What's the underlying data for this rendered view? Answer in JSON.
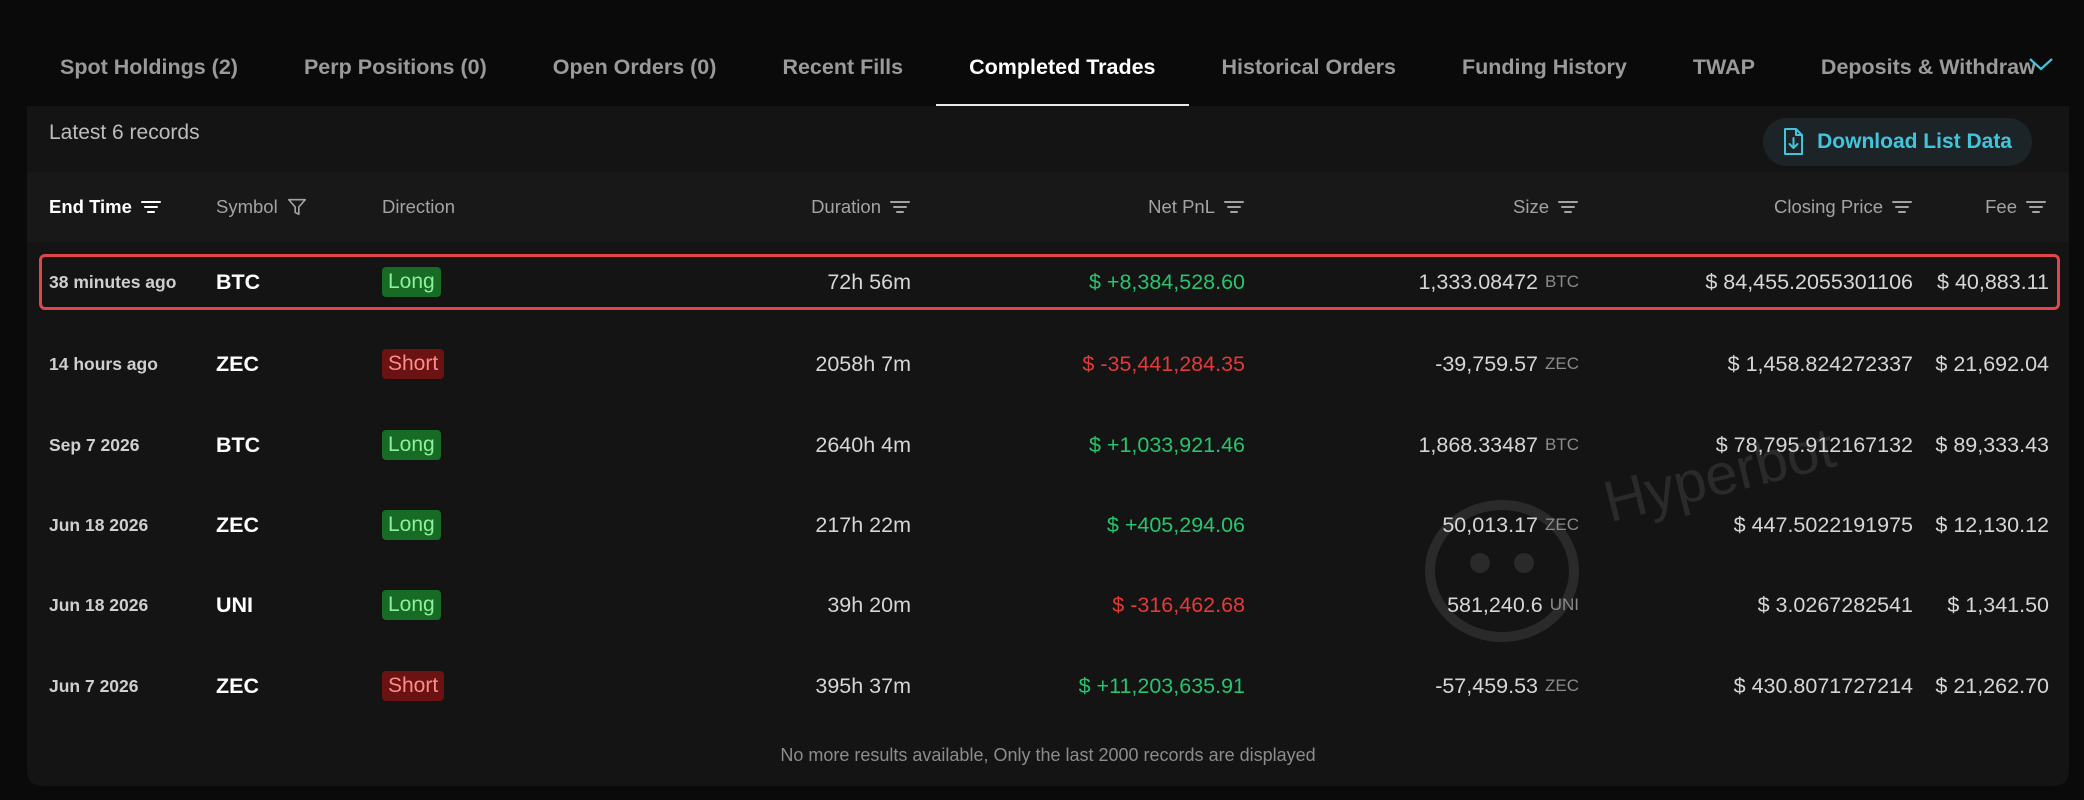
{
  "tabs": [
    {
      "label": "Spot Holdings (2)"
    },
    {
      "label": "Perp Positions (0)"
    },
    {
      "label": "Open Orders (0)"
    },
    {
      "label": "Recent Fills"
    },
    {
      "label": "Completed Trades",
      "active": true
    },
    {
      "label": "Historical Orders"
    },
    {
      "label": "Funding History"
    },
    {
      "label": "TWAP"
    },
    {
      "label": "Deposits & Withdraw"
    }
  ],
  "records_label": "Latest 6 records",
  "download_label": "Download List Data",
  "columns": {
    "end_time": "End Time",
    "symbol": "Symbol",
    "direction": "Direction",
    "duration": "Duration",
    "net_pnl": "Net PnL",
    "size": "Size",
    "closing_price": "Closing Price",
    "fee": "Fee"
  },
  "rows": [
    {
      "time": "38 minutes ago",
      "symbol": "BTC",
      "direction": "Long",
      "duration": "72h 56m",
      "pnl": "$ +8,384,528.60",
      "size": "1,333.08472",
      "size_unit": "BTC",
      "price": "$ 84,455.2055301106",
      "fee": "$ 40,883.11",
      "highlighted": true
    },
    {
      "time": "14 hours ago",
      "symbol": "ZEC",
      "direction": "Short",
      "duration": "2058h 7m",
      "pnl": "$ -35,441,284.35",
      "size": "-39,759.57",
      "size_unit": "ZEC",
      "price": "$ 1,458.824272337",
      "fee": "$ 21,692.04"
    },
    {
      "time": "Sep 7 2026",
      "symbol": "BTC",
      "direction": "Long",
      "duration": "2640h 4m",
      "pnl": "$ +1,033,921.46",
      "size": "1,868.33487",
      "size_unit": "BTC",
      "price": "$ 78,795.912167132",
      "fee": "$ 89,333.43"
    },
    {
      "time": "Jun 18 2026",
      "symbol": "ZEC",
      "direction": "Long",
      "duration": "217h 22m",
      "pnl": "$ +405,294.06",
      "size": "50,013.17",
      "size_unit": "ZEC",
      "price": "$ 447.5022191975",
      "fee": "$ 12,130.12"
    },
    {
      "time": "Jun 18 2026",
      "symbol": "UNI",
      "direction": "Long",
      "duration": "39h 20m",
      "pnl": "$ -316,462.68",
      "size": "581,240.6",
      "size_unit": "UNI",
      "price": "$ 3.0267282541",
      "fee": "$ 1,341.50"
    },
    {
      "time": "Jun 7 2026",
      "symbol": "ZEC",
      "direction": "Short",
      "duration": "395h 37m",
      "pnl": "$ +11,203,635.91",
      "size": "-57,459.53",
      "size_unit": "ZEC",
      "price": "$ 430.8071727214",
      "fee": "$ 21,262.70"
    }
  ],
  "footer_note": "No more results available, Only the last 2000 records are displayed",
  "watermark": "Hyperbot",
  "colors": {
    "accent": "#40c5dd",
    "positive": "#28c46d",
    "negative": "#e23a3a",
    "long_badge_bg": "#176b24",
    "short_badge_bg": "#6b1212",
    "highlight_border": "#e0474c"
  },
  "icons": {
    "sort": "sort-icon",
    "filter": "filter-icon",
    "download": "download-file-icon",
    "tabs_more": "chevron-down-icon"
  }
}
